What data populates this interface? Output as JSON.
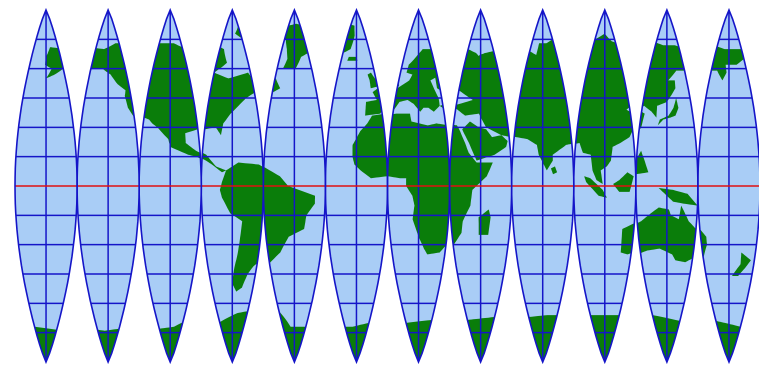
{
  "map": {
    "projection": "interrupted-gore",
    "gore_count": 12,
    "colors": {
      "ocean": "#a9cdf6",
      "land": "#0a7d0a",
      "graticule": "#1515c8",
      "gore_outline": "#1515c8",
      "equator": "#e01010",
      "background": "#ffffff"
    }
  }
}
